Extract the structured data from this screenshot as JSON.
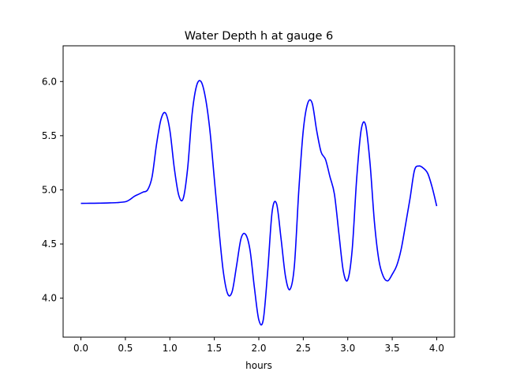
{
  "chart_data": {
    "type": "line",
    "title": "Water Depth h at gauge 6",
    "xlabel": "hours",
    "ylabel": "",
    "xlim": [
      -0.2,
      4.2
    ],
    "ylim": [
      3.64,
      6.33
    ],
    "xticks": [
      0.0,
      0.5,
      1.0,
      1.5,
      2.0,
      2.5,
      3.0,
      3.5,
      4.0
    ],
    "xtick_labels": [
      "0.0",
      "0.5",
      "1.0",
      "1.5",
      "2.0",
      "2.5",
      "3.0",
      "3.5",
      "4.0"
    ],
    "yticks": [
      4.0,
      4.5,
      5.0,
      5.5,
      6.0
    ],
    "ytick_labels": [
      "4.0",
      "4.5",
      "5.0",
      "5.5",
      "6.0"
    ],
    "grid": false,
    "series": [
      {
        "color": "#0000ff",
        "x": [
          0.0,
          0.1,
          0.2,
          0.3,
          0.4,
          0.5,
          0.55,
          0.6,
          0.65,
          0.7,
          0.75,
          0.8,
          0.85,
          0.9,
          0.95,
          1.0,
          1.05,
          1.1,
          1.15,
          1.2,
          1.25,
          1.3,
          1.35,
          1.4,
          1.45,
          1.5,
          1.55,
          1.6,
          1.65,
          1.7,
          1.75,
          1.8,
          1.85,
          1.9,
          1.95,
          2.0,
          2.05,
          2.1,
          2.15,
          2.2,
          2.25,
          2.3,
          2.35,
          2.4,
          2.45,
          2.5,
          2.55,
          2.6,
          2.65,
          2.7,
          2.75,
          2.8,
          2.85,
          2.9,
          2.95,
          3.0,
          3.05,
          3.1,
          3.15,
          3.2,
          3.25,
          3.3,
          3.35,
          3.4,
          3.45,
          3.5,
          3.55,
          3.6,
          3.65,
          3.7,
          3.75,
          3.8,
          3.85,
          3.9,
          3.95,
          4.0
        ],
        "y": [
          4.875,
          4.876,
          4.877,
          4.879,
          4.882,
          4.89,
          4.91,
          4.94,
          4.96,
          4.98,
          5.0,
          5.12,
          5.42,
          5.65,
          5.71,
          5.55,
          5.2,
          4.95,
          4.92,
          5.2,
          5.7,
          5.96,
          6.0,
          5.85,
          5.55,
          5.1,
          4.65,
          4.25,
          4.04,
          4.06,
          4.3,
          4.55,
          4.59,
          4.45,
          4.1,
          3.8,
          3.8,
          4.25,
          4.8,
          4.87,
          4.55,
          4.2,
          4.08,
          4.3,
          5.0,
          5.55,
          5.8,
          5.8,
          5.55,
          5.35,
          5.28,
          5.12,
          4.96,
          4.6,
          4.25,
          4.17,
          4.45,
          5.1,
          5.55,
          5.6,
          5.25,
          4.7,
          4.35,
          4.2,
          4.16,
          4.22,
          4.3,
          4.45,
          4.68,
          4.92,
          5.18,
          5.22,
          5.2,
          5.15,
          5.02,
          4.85
        ]
      }
    ]
  }
}
